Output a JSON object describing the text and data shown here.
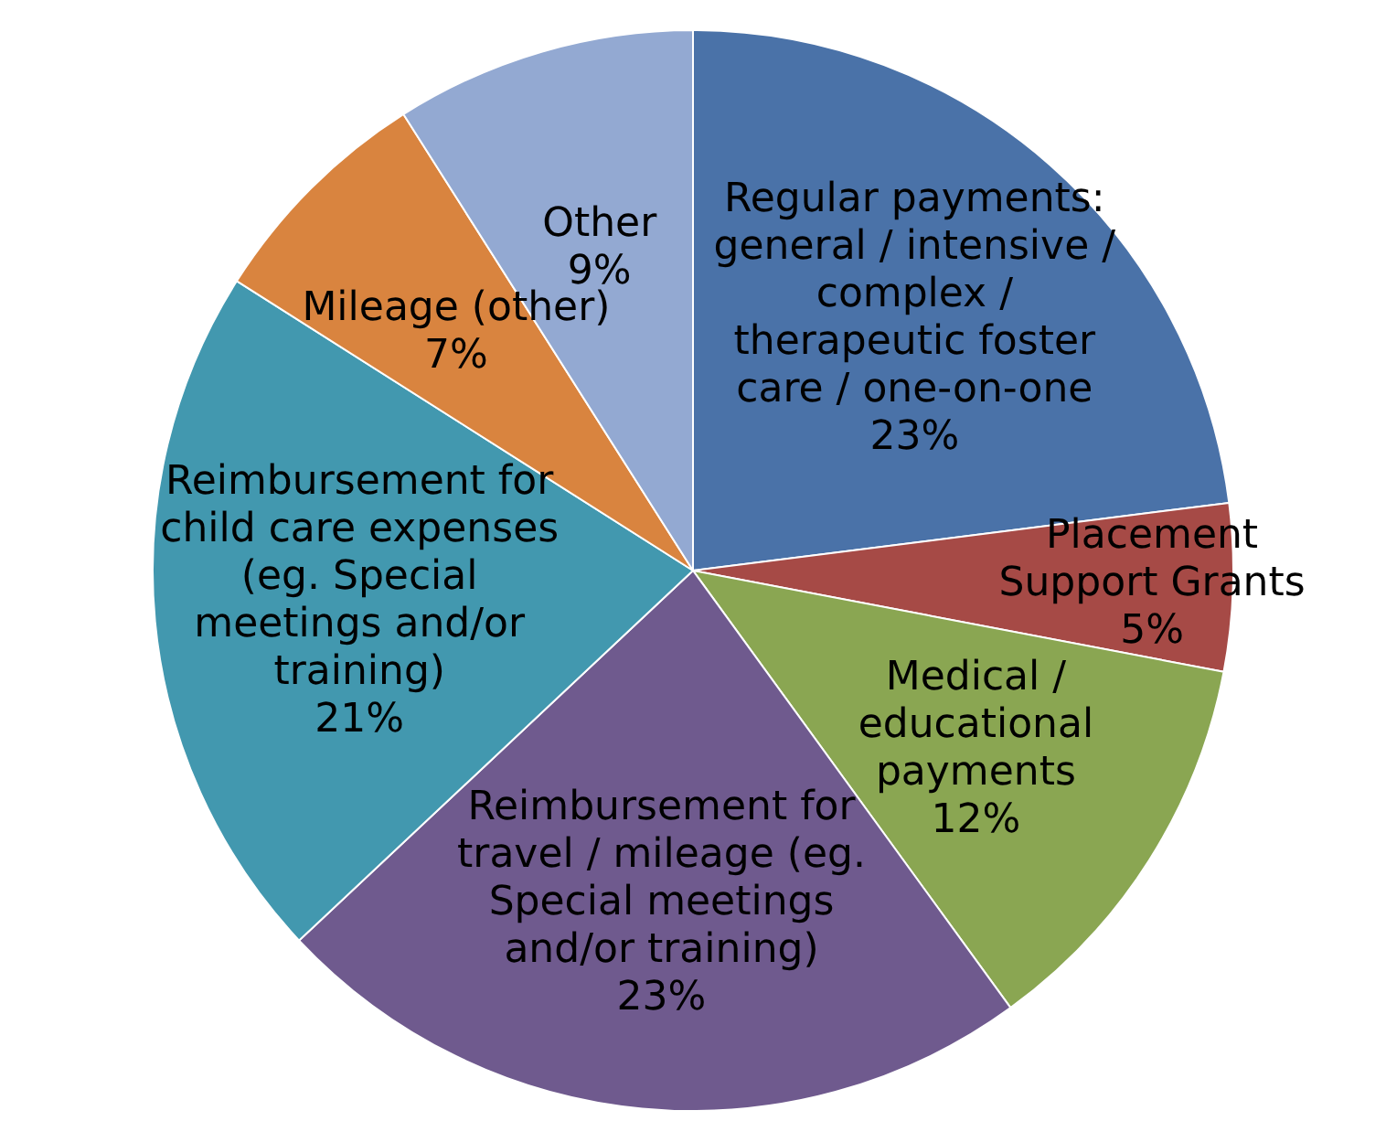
{
  "chart_data": {
    "type": "pie",
    "categories": [
      "Regular payments: general / intensive / complex / therapeutic foster care / one-on-one",
      "Placement Support Grants",
      "Medical / educational payments",
      "Reimbursement for travel / mileage (eg. Special meetings and/or training)",
      "Reimbursement for child care expenses (eg. Special meetings and/or training)",
      "Mileage (other)",
      "Other"
    ],
    "values": [
      23,
      5,
      12,
      23,
      21,
      7,
      9
    ],
    "value_labels": [
      "23%",
      "5%",
      "12%",
      "23%",
      "21%",
      "7%",
      "9%"
    ],
    "colors": [
      "#4a72a8",
      "#a64a46",
      "#8aa652",
      "#6f5a8e",
      "#4298af",
      "#d9843f",
      "#93a9d2"
    ],
    "legend": false
  }
}
